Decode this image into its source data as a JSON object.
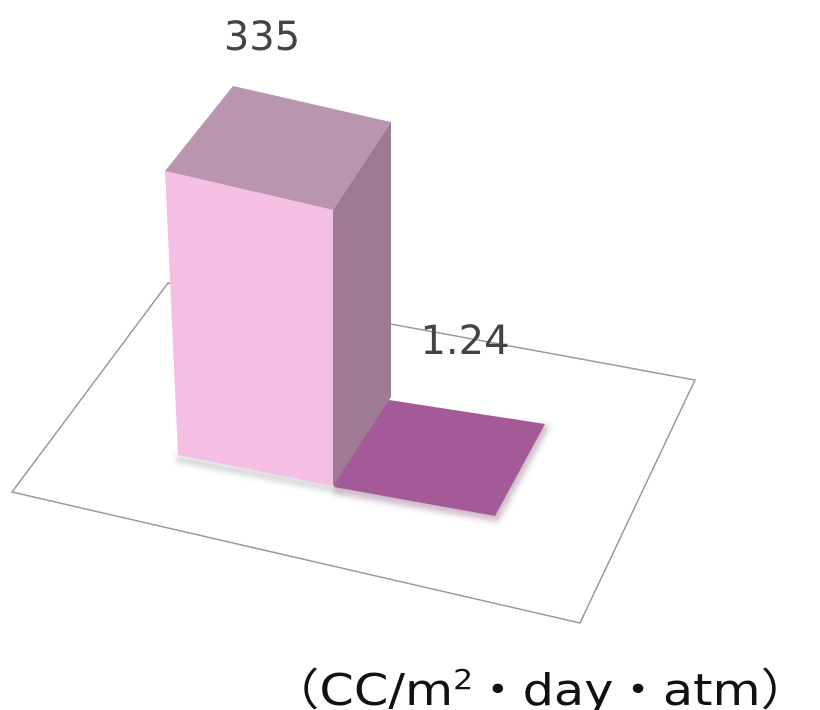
{
  "chart_data": {
    "type": "bar",
    "style": "3d",
    "categories": [
      "",
      ""
    ],
    "values": [
      335,
      1.24
    ],
    "data_labels": [
      "335",
      "1.24"
    ],
    "colors": {
      "bar1_front": "#f4bfe3",
      "bar1_top": "#b995b0",
      "bar1_side": "#9e7a94",
      "bar2_top": "#a35a96",
      "floor_stroke": "#9a9a9a",
      "floor_fill": "#ffffff"
    },
    "unit": {
      "prefix": "（CC/m",
      "sup": "2",
      "suffix": "・day・atm）"
    },
    "legend": "none",
    "grid": false
  }
}
